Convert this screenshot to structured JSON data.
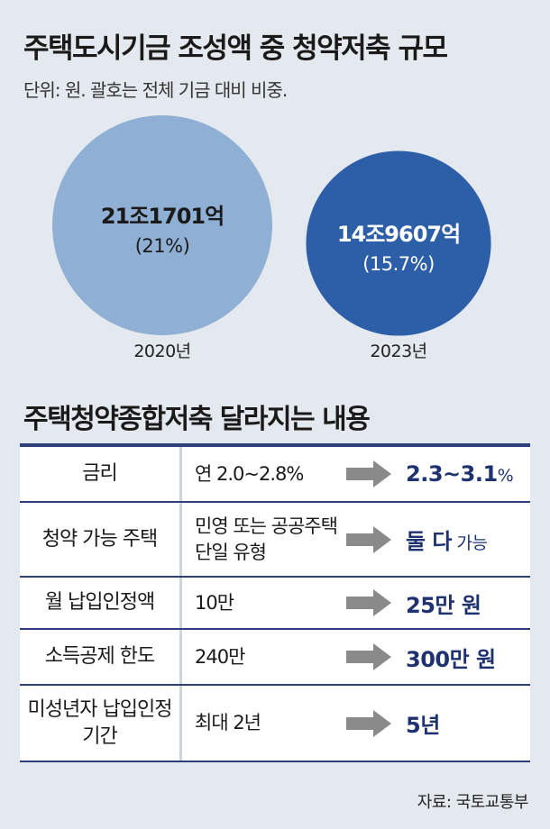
{
  "title": "주택도시기금 조성액 중 청약저축 규모",
  "subtitle": "단위: 원. 괄호는 전체 기금 대비 비중.",
  "chart_data": {
    "type": "bubble",
    "title": "주택도시기금 조성액 중 청약저축 규모",
    "subtitle": "단위: 원. 괄호는 전체 기금 대비 비중.",
    "unit": "원",
    "points": [
      {
        "year": "2020년",
        "amount_label": "21조1701억",
        "share_label": "(21%)",
        "amount_eok": 211701,
        "share_pct": 21,
        "color": "#8fb0d4",
        "text_color": "#1a1a1a"
      },
      {
        "year": "2023년",
        "amount_label": "14조9607억",
        "share_label": "(15.7%)",
        "amount_eok": 149607,
        "share_pct": 15.7,
        "color": "#2d5ea8",
        "text_color": "#ffffff"
      }
    ]
  },
  "section_title": "주택청약종합저축 달라지는 내용",
  "rows": [
    {
      "label": "금리",
      "before": "연 2.0~2.8%",
      "after": "2.3~3.1",
      "after_suffix": "%"
    },
    {
      "label": "청약 가능 주택",
      "before": "민영 또는 공공주택 단일 유형",
      "after": "둘 다",
      "after_suffix": " 가능"
    },
    {
      "label": "월 납입인정액",
      "before": "10만",
      "after": "25만 원",
      "after_suffix": ""
    },
    {
      "label": "소득공제 한도",
      "before": "240만",
      "after": "300만 원",
      "after_suffix": ""
    },
    {
      "label": "미성년자 납입인정기간",
      "before": "최대 2년",
      "after": "5년",
      "after_suffix": ""
    }
  ],
  "source": "자료: 국토교통부",
  "colors": {
    "background": "#e3e9ee",
    "accent": "#1f3270",
    "arrow": "#8a8a8a"
  }
}
